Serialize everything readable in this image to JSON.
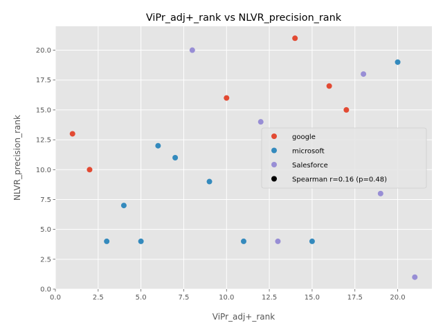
{
  "chart_data": {
    "type": "scatter",
    "title": "ViPr_adj+_rank vs NLVR_precision_rank",
    "xlabel": "ViPr_adj+_rank",
    "ylabel": "NLVR_precision_rank",
    "xlim": [
      0,
      22
    ],
    "ylim": [
      0,
      22
    ],
    "xticks": [
      0.0,
      2.5,
      5.0,
      7.5,
      10.0,
      12.5,
      15.0,
      17.5,
      20.0
    ],
    "xtick_labels": [
      "0.0",
      "2.5",
      "5.0",
      "7.5",
      "10.0",
      "12.5",
      "15.0",
      "17.5",
      "20.0"
    ],
    "yticks": [
      0.0,
      2.5,
      5.0,
      7.5,
      10.0,
      12.5,
      15.0,
      17.5,
      20.0
    ],
    "ytick_labels": [
      "0.0",
      "2.5",
      "5.0",
      "7.5",
      "10.0",
      "12.5",
      "15.0",
      "17.5",
      "20.0"
    ],
    "grid": true,
    "background": "#e5e5e5",
    "grid_color": "#ffffff",
    "legend_placement": "center-right",
    "series": [
      {
        "name": "google",
        "color": "#e24a33",
        "points": [
          [
            1,
            13
          ],
          [
            2,
            10
          ],
          [
            10,
            16
          ],
          [
            14,
            21
          ],
          [
            16,
            17
          ],
          [
            17,
            15
          ]
        ]
      },
      {
        "name": "microsoft",
        "color": "#348abd",
        "points": [
          [
            3,
            4
          ],
          [
            4,
            7
          ],
          [
            5,
            4
          ],
          [
            6,
            12
          ],
          [
            7,
            11
          ],
          [
            9,
            9
          ],
          [
            11,
            4
          ],
          [
            15,
            4
          ],
          [
            20,
            19
          ]
        ]
      },
      {
        "name": "Salesforce",
        "color": "#988ed5",
        "points": [
          [
            8,
            20
          ],
          [
            12,
            14
          ],
          [
            13,
            4
          ],
          [
            18,
            18
          ],
          [
            19,
            8
          ],
          [
            21,
            1
          ]
        ]
      }
    ],
    "legend_extra": {
      "label": "Spearman r=0.16 (p=0.48)",
      "color": "#000000"
    }
  }
}
